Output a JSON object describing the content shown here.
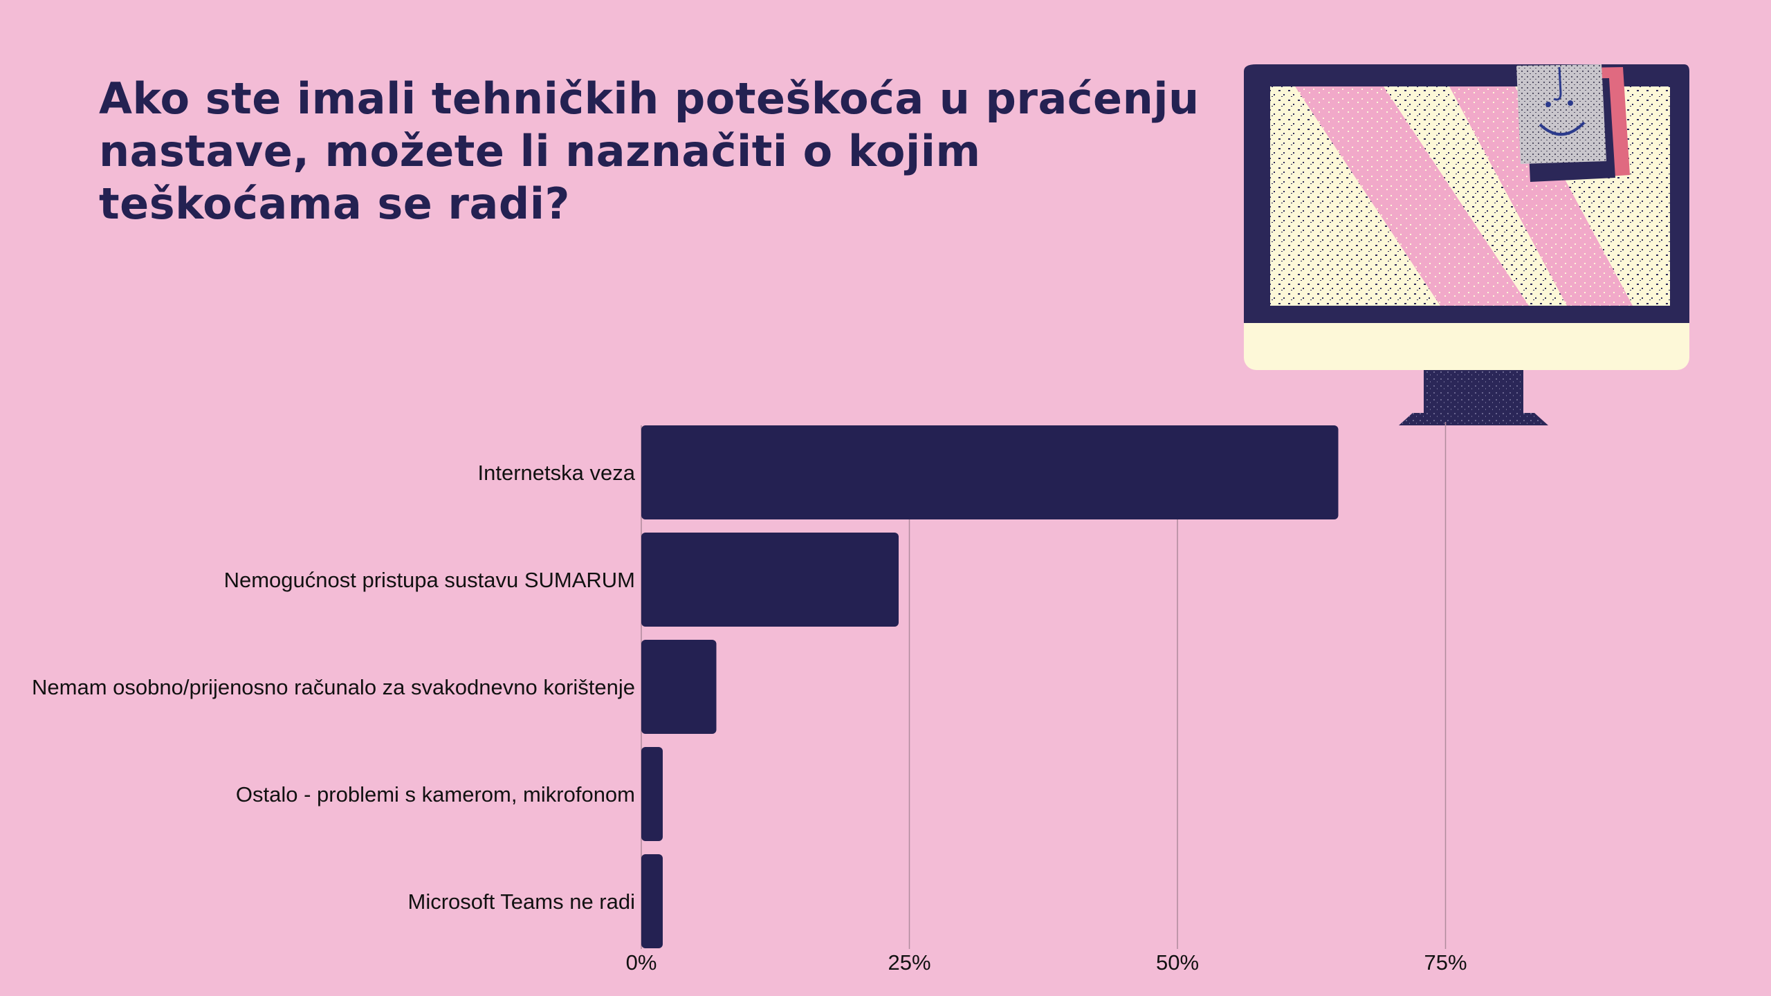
{
  "title": "Ako ste imali tehničkih poteškoća u praćenju nastave, možete li naznačiti o kojim teškoćama se radi?",
  "colors": {
    "background": "#f3bcd6",
    "bar": "#242152",
    "title": "#242152",
    "grid": "#b08a9c",
    "screen": "#fdf8d8",
    "accent_pink": "#f0a8c8",
    "sticky_note": "#c9c6cc",
    "sticky_note_back": "#e06a80"
  },
  "illustration": {
    "icon": "computer-monitor-with-smiley-sticky-note-icon"
  },
  "chart_data": {
    "type": "bar",
    "orientation": "horizontal",
    "categories": [
      "Internetska veza",
      "Nemogućnost pristupa sustavu SUMARUM",
      "Nemam osobno/prijenosno računalo za svakodnevno korištenje",
      "Ostalo - problemi s kamerom, mikrofonom",
      "Microsoft Teams ne radi"
    ],
    "values": [
      65,
      24,
      7,
      2,
      2
    ],
    "unit": "%",
    "xlim": [
      0,
      100
    ],
    "x_ticks": [
      0,
      25,
      50,
      75
    ],
    "x_tick_labels": [
      "0%",
      "25%",
      "50%",
      "75%"
    ],
    "grid": "vertical",
    "legend": "none"
  }
}
